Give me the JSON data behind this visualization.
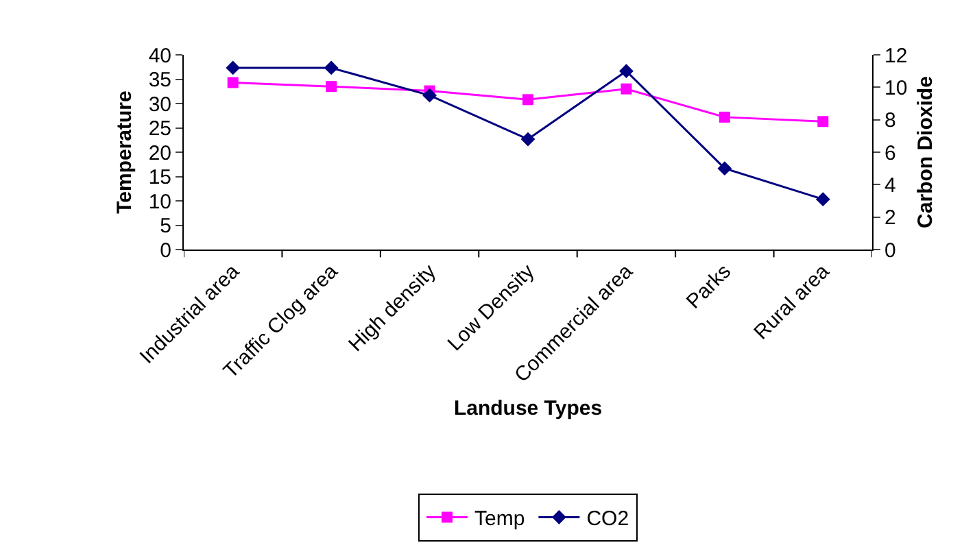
{
  "chart_data": {
    "type": "line",
    "xlabel": "Landuse Types",
    "ylabel": "Temperature",
    "y2label": "Carbon Dioxide",
    "categories": [
      "Industrial area",
      "Traffic Clog area",
      "High density",
      "Low Density",
      "Commercial area",
      "Parks",
      "Rural area"
    ],
    "series": [
      {
        "name": "Temp",
        "color": "#ff00ff",
        "marker": "square",
        "values": [
          34.3,
          33.5,
          32.6,
          30.8,
          33.0,
          27.2,
          26.3
        ]
      },
      {
        "name": "CO2",
        "color": "#000080",
        "marker": "diamond",
        "axis": "y2",
        "values": [
          11.2,
          11.2,
          9.5,
          6.8,
          11.0,
          5.0,
          3.1
        ]
      }
    ],
    "ylim": [
      0,
      40
    ],
    "yticks": [
      0,
      5,
      10,
      15,
      20,
      25,
      30,
      35,
      40
    ],
    "y2lim": [
      0,
      12
    ],
    "y2ticks": [
      0,
      2,
      4,
      6,
      8,
      10,
      12
    ],
    "grid": false,
    "legend": "bottom"
  }
}
